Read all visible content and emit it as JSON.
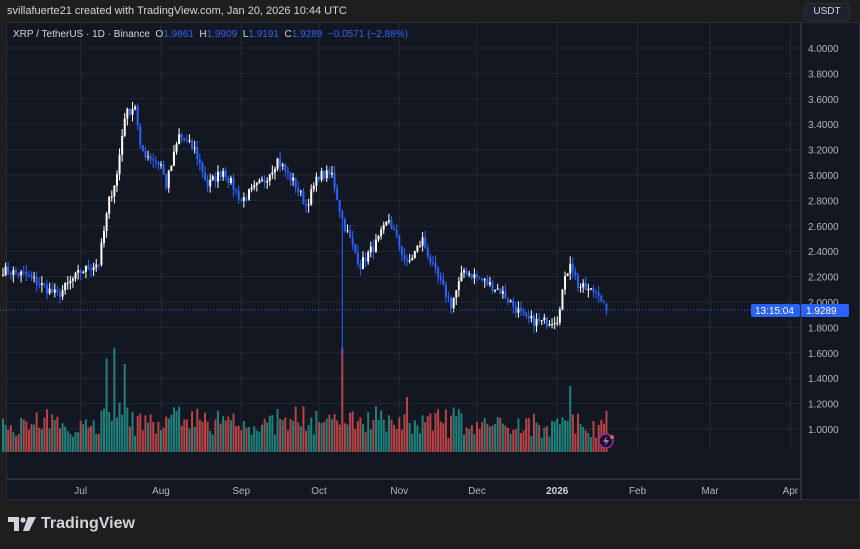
{
  "header": {
    "caption": "svillafuerte21 created with TradingView.com, Jan 20, 2026 10:44 UTC"
  },
  "legend": {
    "symbol": "XRP / TetherUS · 1D · Binance",
    "o_label": "O",
    "o": "1.9861",
    "h_label": "H",
    "h": "1.9909",
    "l_label": "L",
    "l": "1.9191",
    "c_label": "C",
    "c": "1.9289",
    "change": "−0.0571 (−2.88%)"
  },
  "currency": "USDT",
  "last_price": {
    "value": "1.9289",
    "countdown": "13:15:04"
  },
  "brand": "TradingView",
  "colors": {
    "up": "#ffffff",
    "down": "#2962ff",
    "vol_up": "#26a69a",
    "vol_down": "#ef5350",
    "price_label_bg": "#2962ff",
    "alert_icon": "#9c27b0"
  },
  "icons": [
    "lightning-alert-icon",
    "tradingview-logo-icon"
  ],
  "chart_data": {
    "type": "candlestick",
    "title": "XRP / TetherUS · 1D · Binance",
    "ylim": [
      1.0,
      4.0
    ],
    "y_ticks": [
      "4.0000",
      "3.8000",
      "3.6000",
      "3.4000",
      "3.2000",
      "3.0000",
      "2.8000",
      "2.6000",
      "2.4000",
      "2.2000",
      "2.0000",
      "1.8000",
      "1.6000",
      "1.4000",
      "1.2000",
      "1.0000"
    ],
    "x_ticks": [
      "Jul",
      "Aug",
      "Sep",
      "Oct",
      "Nov",
      "Dec",
      "2026",
      "Feb",
      "Mar",
      "Apr"
    ],
    "x_range": [
      "2025-06-01",
      "2026-04-04"
    ],
    "grid": true,
    "close_keypoints": [
      [
        "2025-06-01",
        2.25
      ],
      [
        "2025-06-10",
        2.21
      ],
      [
        "2025-06-22",
        2.05
      ],
      [
        "2025-07-01",
        2.24
      ],
      [
        "2025-07-08",
        2.31
      ],
      [
        "2025-07-12",
        2.8
      ],
      [
        "2025-07-15",
        3.0
      ],
      [
        "2025-07-18",
        3.47
      ],
      [
        "2025-07-22",
        3.55
      ],
      [
        "2025-07-24",
        3.2
      ],
      [
        "2025-08-01",
        3.08
      ],
      [
        "2025-08-03",
        2.92
      ],
      [
        "2025-08-08",
        3.31
      ],
      [
        "2025-08-14",
        3.2
      ],
      [
        "2025-08-19",
        2.92
      ],
      [
        "2025-08-25",
        3.04
      ],
      [
        "2025-09-01",
        2.8
      ],
      [
        "2025-09-10",
        2.96
      ],
      [
        "2025-09-15",
        3.12
      ],
      [
        "2025-09-22",
        2.92
      ],
      [
        "2025-09-26",
        2.76
      ],
      [
        "2025-10-01",
        3.0
      ],
      [
        "2025-10-06",
        3.0
      ],
      [
        "2025-10-10",
        2.65
      ],
      [
        "2025-10-13",
        2.49
      ],
      [
        "2025-10-17",
        2.29
      ],
      [
        "2025-10-24",
        2.49
      ],
      [
        "2025-10-28",
        2.65
      ],
      [
        "2025-11-04",
        2.29
      ],
      [
        "2025-11-10",
        2.49
      ],
      [
        "2025-11-14",
        2.27
      ],
      [
        "2025-11-21",
        1.98
      ],
      [
        "2025-11-26",
        2.25
      ],
      [
        "2025-12-03",
        2.17
      ],
      [
        "2025-12-10",
        2.09
      ],
      [
        "2025-12-16",
        1.95
      ],
      [
        "2025-12-20",
        1.86
      ],
      [
        "2025-12-26",
        1.84
      ],
      [
        "2026-01-01",
        1.87
      ],
      [
        "2026-01-03",
        2.09
      ],
      [
        "2026-01-06",
        2.33
      ],
      [
        "2026-01-09",
        2.13
      ],
      [
        "2026-01-13",
        2.09
      ],
      [
        "2026-01-17",
        2.08
      ],
      [
        "2026-01-20",
        1.9289
      ]
    ],
    "notable_lows": [
      [
        "2025-10-10",
        1.58
      ]
    ],
    "volume_spikes": [
      [
        "2025-07-11",
        0.85
      ],
      [
        "2025-07-14",
        0.95
      ],
      [
        "2025-07-18",
        0.8
      ],
      [
        "2025-10-10",
        0.95
      ],
      [
        "2025-11-04",
        0.5
      ],
      [
        "2026-01-06",
        0.6
      ]
    ]
  }
}
